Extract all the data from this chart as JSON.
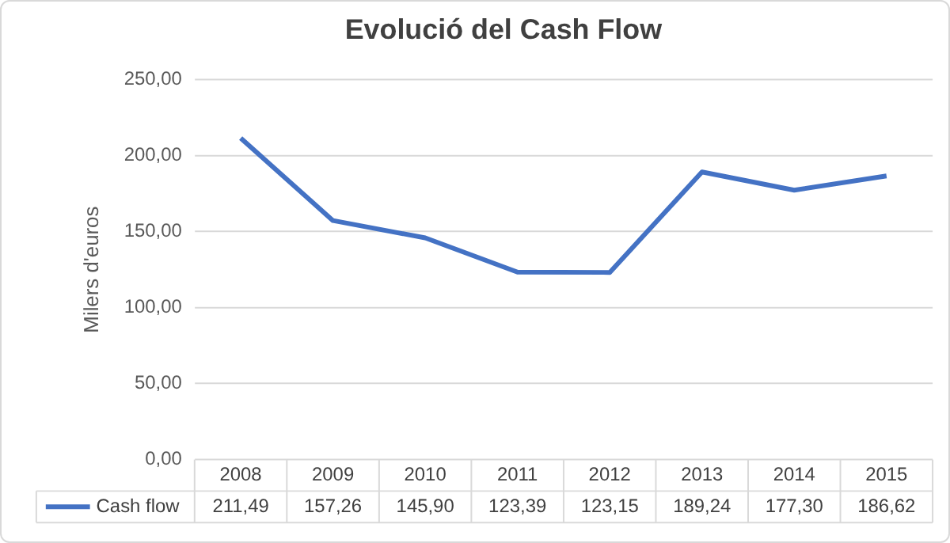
{
  "chart_data": {
    "type": "line",
    "title": "Evolució del Cash Flow",
    "ylabel": "Milers d'euros",
    "categories": [
      "2008",
      "2009",
      "2010",
      "2011",
      "2012",
      "2013",
      "2014",
      "2015"
    ],
    "series": [
      {
        "name": "Cash flow",
        "color": "#4472c4",
        "values": [
          211.49,
          157.26,
          145.9,
          123.39,
          123.15,
          189.24,
          177.3,
          186.62
        ],
        "value_labels": [
          "211,49",
          "157,26",
          "145,90",
          "123,39",
          "123,15",
          "189,24",
          "177,30",
          "186,62"
        ]
      }
    ],
    "ylim": [
      0,
      250
    ],
    "yticks": [
      {
        "value": 0,
        "label": "0,00"
      },
      {
        "value": 50,
        "label": "50,00"
      },
      {
        "value": 100,
        "label": "100,00"
      },
      {
        "value": 150,
        "label": "150,00"
      },
      {
        "value": 200,
        "label": "200,00"
      },
      {
        "value": 250,
        "label": "250,00"
      }
    ],
    "grid": "y",
    "legend": "bottom",
    "marker": "none",
    "line_style": "solid"
  }
}
